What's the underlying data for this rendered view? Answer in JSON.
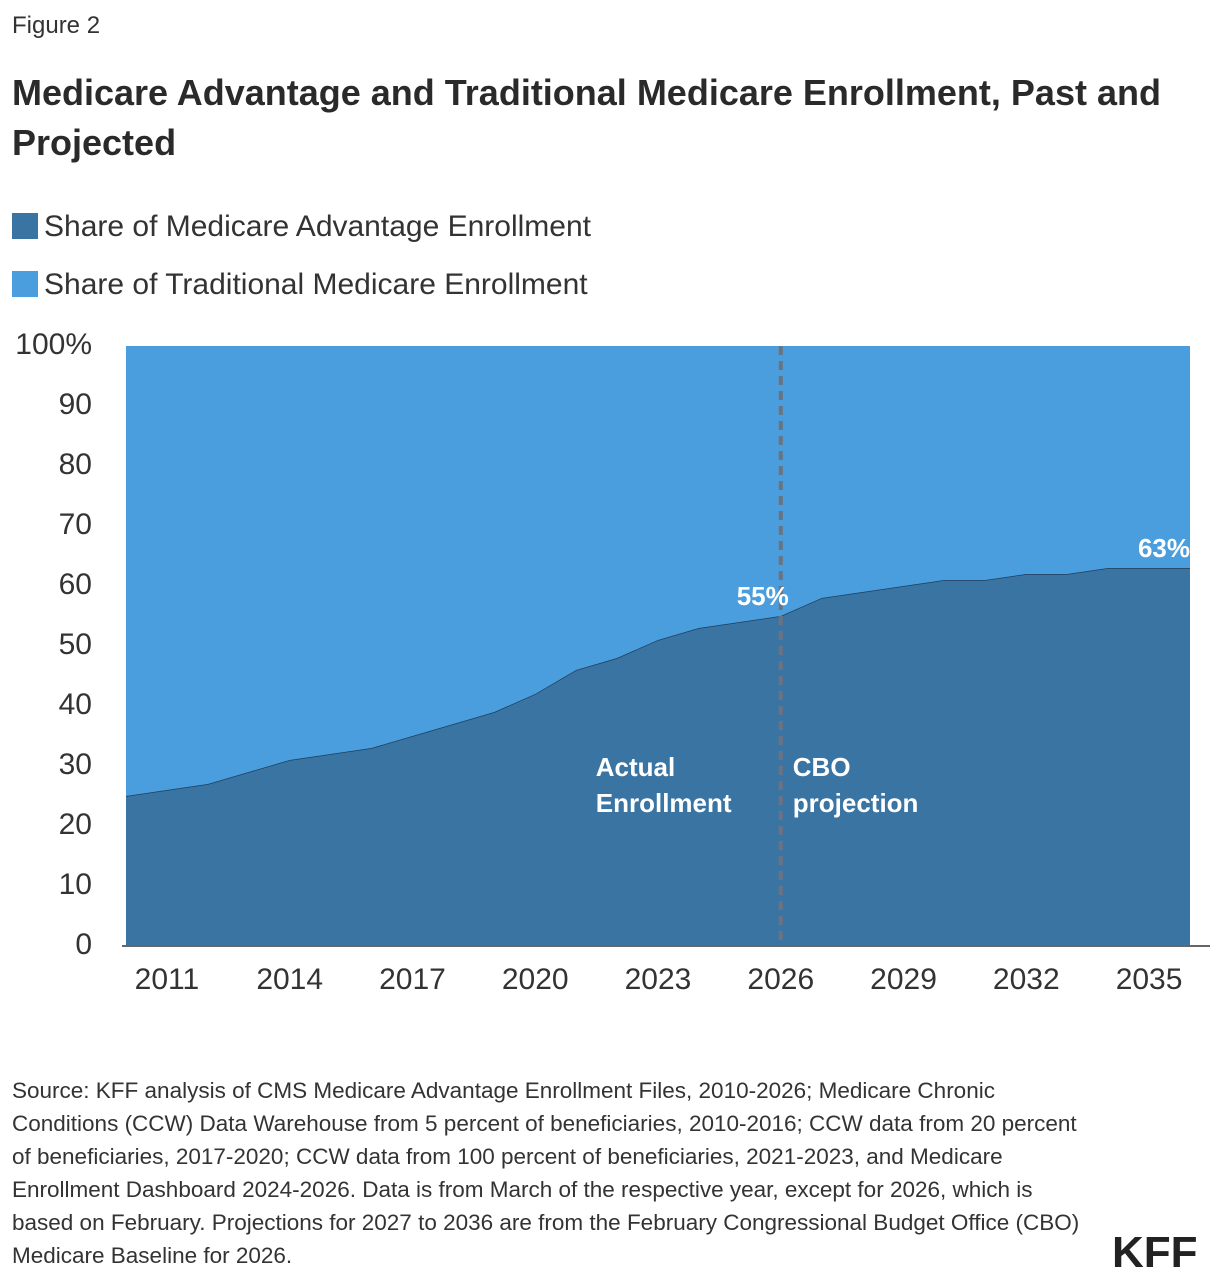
{
  "figure_label": "Figure 2",
  "logo": "KFF",
  "source": "Source: KFF analysis of CMS Medicare Advantage Enrollment Files, 2010-2026; Medicare Chronic Conditions (CCW) Data Warehouse from 5 percent of beneficiaries, 2010-2016; CCW data from 20 percent of beneficiaries, 2017-2020; CCW data from 100 percent of beneficiaries, 2021-2023, and Medicare Enrollment Dashboard 2024-2026. Data is from March of the respective year, except for 2026, which is based on February. Projections for 2027 to 2036 are from the February Congressional Budget Office (CBO) Medicare Baseline for 2026.",
  "chart_data": {
    "type": "stacked_area",
    "title": "Medicare Advantage and Traditional Medicare Enrollment, Past and Projected",
    "x": [
      2010,
      2011,
      2012,
      2013,
      2014,
      2015,
      2016,
      2017,
      2018,
      2019,
      2020,
      2021,
      2022,
      2023,
      2024,
      2025,
      2026,
      2027,
      2028,
      2029,
      2030,
      2031,
      2032,
      2033,
      2034,
      2035,
      2036
    ],
    "series": [
      {
        "name": "Share of Medicare Advantage Enrollment",
        "color": "#3a74a3",
        "values": [
          25,
          26,
          27,
          29,
          31,
          32,
          33,
          35,
          37,
          39,
          42,
          46,
          48,
          51,
          53,
          54,
          55,
          58,
          59,
          60,
          61,
          61,
          62,
          62,
          63,
          63,
          63
        ],
        "value_labels": [
          null,
          null,
          null,
          null,
          null,
          null,
          null,
          null,
          null,
          null,
          null,
          null,
          null,
          null,
          null,
          null,
          "55%",
          null,
          null,
          null,
          null,
          null,
          null,
          null,
          null,
          null,
          "63%"
        ]
      },
      {
        "name": "Share of Traditional Medicare Enrollment",
        "color": "#4b9edd",
        "values": [
          75,
          74,
          73,
          71,
          69,
          68,
          67,
          65,
          63,
          61,
          58,
          54,
          52,
          49,
          47,
          46,
          45,
          42,
          41,
          40,
          39,
          39,
          38,
          38,
          37,
          37,
          37
        ]
      }
    ],
    "xlim": [
      2010,
      2036
    ],
    "xticks": [
      2011,
      2014,
      2017,
      2020,
      2023,
      2026,
      2029,
      2032,
      2035
    ],
    "ylim": [
      0,
      100
    ],
    "yticks": [
      0,
      10,
      20,
      30,
      40,
      50,
      60,
      70,
      80,
      90,
      {
        "value": 100,
        "label": "100%"
      }
    ],
    "divider_x": 2026,
    "annotations": [
      {
        "lines": [
          "Actual",
          "Enrollment"
        ]
      },
      {
        "lines": [
          "CBO",
          "projection"
        ]
      }
    ]
  }
}
